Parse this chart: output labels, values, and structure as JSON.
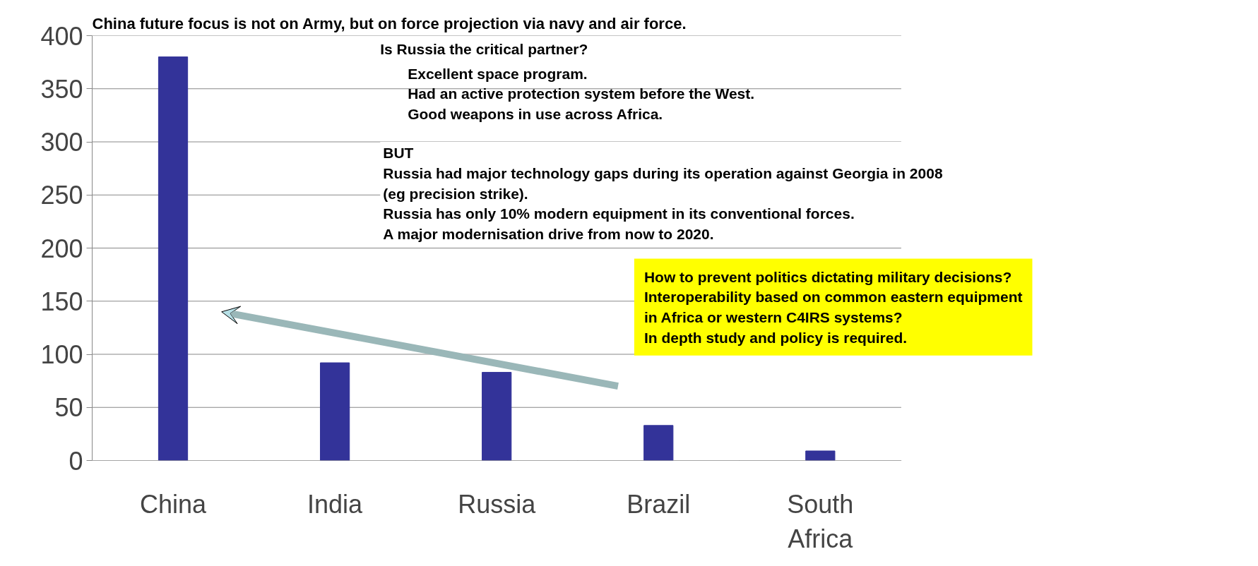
{
  "chart_data": {
    "type": "bar",
    "title": "China future focus is not on Army, but on force projection via navy and air force.",
    "categories": [
      "China",
      "India",
      "Russia",
      "Brazil",
      "South Africa"
    ],
    "values": [
      380,
      92,
      83,
      33,
      9
    ],
    "color": "#333399",
    "ylim": [
      0,
      400
    ],
    "yticks": [
      0,
      50,
      100,
      150,
      200,
      250,
      300,
      350,
      400
    ],
    "grid": "y",
    "annotations": [
      "Is Russia the critical partner?",
      "Excellent space program.\nHad an active protection system before the West.\nGood weapons in use across Africa.",
      "BUT\nRussia had major technology gaps during its operation  against Georgia in 2008\n(eg precision strike).\nRussia has only 10% modern equipment in its conventional forces.\nA major modernisation drive from now to 2020.",
      "How to prevent politics dictating military decisions?\nInteroperability based on common eastern equipment\nin Africa or western C4IRS systems?\nIn depth study and policy is required."
    ]
  }
}
